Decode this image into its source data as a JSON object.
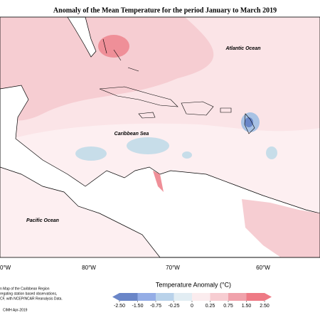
{
  "title": "Anomaly of the Mean Temperature for the period January to March 2019",
  "ocean_labels": [
    "Atlantic Ocean",
    "Caribbean Sea",
    "Pacific Ocean"
  ],
  "lon_labels": [
    "0°W",
    "80°W",
    "70°W",
    "60°W"
  ],
  "colorbar": {
    "title": "Temperature Anomaly (°C)",
    "ticks": [
      {
        "value": -2.5,
        "label": "-2.50"
      },
      {
        "value": -1.5,
        "label": "-1.50"
      },
      -0.75,
      -0.25,
      0,
      0.25,
      0.75,
      {
        "value": 1.5,
        "label": "1.50"
      },
      {
        "value": 2.5,
        "label": "2.50"
      }
    ],
    "colors": [
      "#6a86c8",
      "#94ade6",
      "#b9d2ea",
      "#e2edf3",
      "#fbecee",
      "#f7cdd2",
      "#f0a2ab",
      "#ee7a85"
    ]
  },
  "credits": [
    "n Map of the Caribbean Region",
    "regating station based observations,",
    "CF, with NCEP/NCAR Reanalysis Data.",
    "CIMH Apr-2019"
  ]
}
